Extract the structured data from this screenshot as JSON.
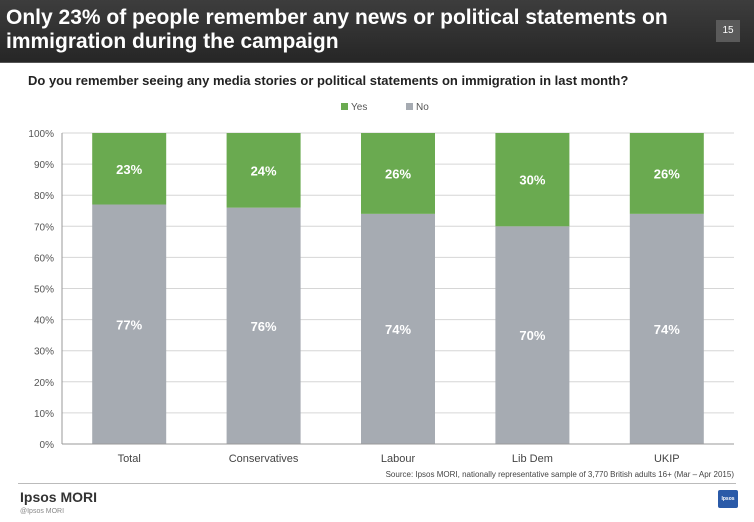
{
  "header": {
    "title": "Only 23% of people remember any news or political statements on immigration during the campaign",
    "page_number": "15"
  },
  "question": "Do you remember seeing any media stories or political statements on immigration in last month?",
  "chart_data": {
    "type": "bar",
    "stacked": true,
    "categories": [
      "Total",
      "Conservatives",
      "Labour",
      "Lib Dem",
      "UKIP"
    ],
    "series": [
      {
        "name": "Yes",
        "values": [
          23,
          24,
          26,
          30,
          26
        ],
        "labels": [
          "23%",
          "24%",
          "26%",
          "30%",
          "26%"
        ],
        "color": "#6aaa50"
      },
      {
        "name": "No",
        "values": [
          77,
          76,
          74,
          70,
          74
        ],
        "labels": [
          "77%",
          "76%",
          "74%",
          "70%",
          "74%"
        ],
        "color": "#a6abb2"
      }
    ],
    "ylim": [
      0,
      100
    ],
    "yticks": [
      "0%",
      "10%",
      "20%",
      "30%",
      "40%",
      "50%",
      "60%",
      "70%",
      "80%",
      "90%",
      "100%"
    ],
    "grid": true,
    "legend_position": "top"
  },
  "source": "Source: Ipsos MORI,  nationally  representative sample of  3,770 British adults 16+ (Mar – Apr 2015)",
  "footer": {
    "brand": "Ipsos MORI",
    "copyright": "@Ipsos MORI",
    "logo_text": "Ipsos"
  },
  "colors": {
    "yes": "#6aaa50",
    "no": "#a6abb2",
    "title_bar": "#2e2e2e"
  }
}
